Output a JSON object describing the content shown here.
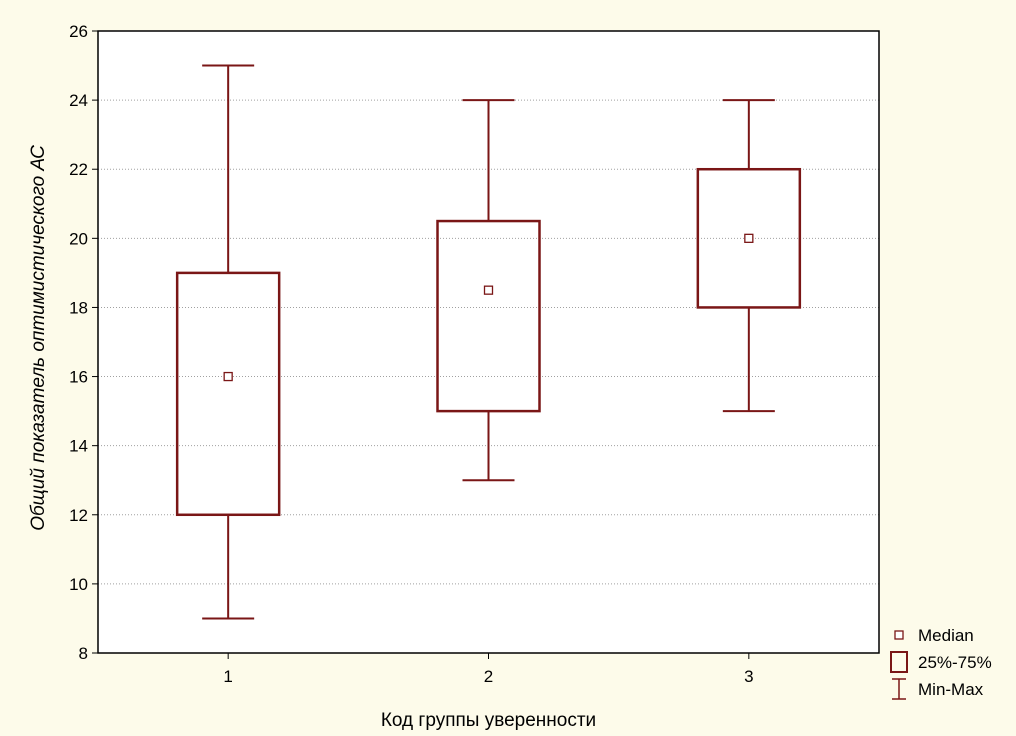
{
  "chart_data": {
    "type": "boxplot",
    "title": "",
    "xlabel": "Код группы уверенности",
    "ylabel": "Общий показатель оптимистического АС",
    "ylim": [
      8,
      26
    ],
    "yticks": [
      8,
      10,
      12,
      14,
      16,
      18,
      20,
      22,
      24,
      26
    ],
    "categories": [
      "1",
      "2",
      "3"
    ],
    "boxes": [
      {
        "category": "1",
        "min": 9,
        "q1": 12,
        "median": 16,
        "q3": 19,
        "max": 25
      },
      {
        "category": "2",
        "min": 13,
        "q1": 15,
        "median": 18.5,
        "q3": 20.5,
        "max": 24
      },
      {
        "category": "3",
        "min": 15,
        "q1": 18,
        "median": 20,
        "q3": 22,
        "max": 24
      }
    ],
    "grid": "horizontal-dotted",
    "legend_position": "bottom-right-outside",
    "legend": [
      {
        "symbol": "square-marker",
        "label": "Median"
      },
      {
        "symbol": "box",
        "label": "25%-75%"
      },
      {
        "symbol": "whisker",
        "label": "Min-Max"
      }
    ],
    "colors": {
      "series": "#7a1616",
      "background": "#fdfbea",
      "plot_area": "#ffffff",
      "grid": "#a0a0a0"
    }
  }
}
